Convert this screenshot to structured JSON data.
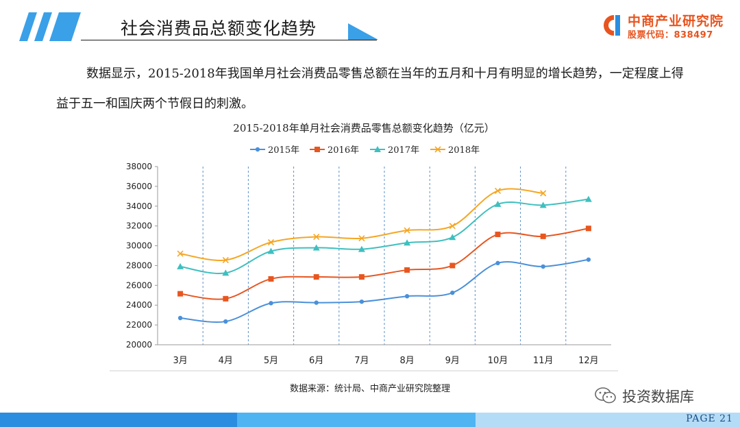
{
  "header": {
    "title": "社会消费品总额变化趋势"
  },
  "logo": {
    "name": "中商产业研究院",
    "code": "股票代码：838497"
  },
  "paragraph": "数据显示，2015-2018年我国单月社会消费品零售总额在当年的五月和十月有明显的增长趋势，一定程度上得益于五一和国庆两个节假日的刺激。",
  "chart_data": {
    "type": "line",
    "title": "2015-2018年单月社会消费品零售总额变化趋势（亿元）",
    "categories": [
      "3月",
      "4月",
      "5月",
      "6月",
      "7月",
      "8月",
      "9月",
      "10月",
      "11月",
      "12月"
    ],
    "ylim": [
      20000,
      38000
    ],
    "yticks": [
      20000,
      22000,
      24000,
      26000,
      28000,
      30000,
      32000,
      34000,
      36000,
      38000
    ],
    "legend_position": "top",
    "grid": "dashed vertical",
    "series": [
      {
        "name": "2015年",
        "color": "#4a90d9",
        "marker": "circle",
        "values": [
          22700,
          22350,
          24200,
          24250,
          24350,
          24900,
          25250,
          28250,
          27900,
          28600
        ]
      },
      {
        "name": "2016年",
        "color": "#e8561f",
        "marker": "square",
        "values": [
          25150,
          24650,
          26650,
          26850,
          26850,
          27550,
          28000,
          31150,
          30950,
          31750
        ]
      },
      {
        "name": "2017年",
        "color": "#3fbfbf",
        "marker": "triangle",
        "values": [
          27900,
          27250,
          29450,
          29800,
          29650,
          30300,
          30850,
          34200,
          34100,
          34700
        ]
      },
      {
        "name": "2018年",
        "color": "#f5a623",
        "marker": "x",
        "values": [
          29200,
          28550,
          30350,
          30900,
          30750,
          31550,
          32000,
          35550,
          35300,
          null
        ]
      }
    ]
  },
  "source": "数据来源：统计局、中商产业研究院整理",
  "wechat": {
    "name": "投资数据库"
  },
  "footer": {
    "page": "PAGE 21"
  },
  "colors": {
    "accent_blue": "#2b8de0",
    "brand_orange": "#e8541f"
  }
}
